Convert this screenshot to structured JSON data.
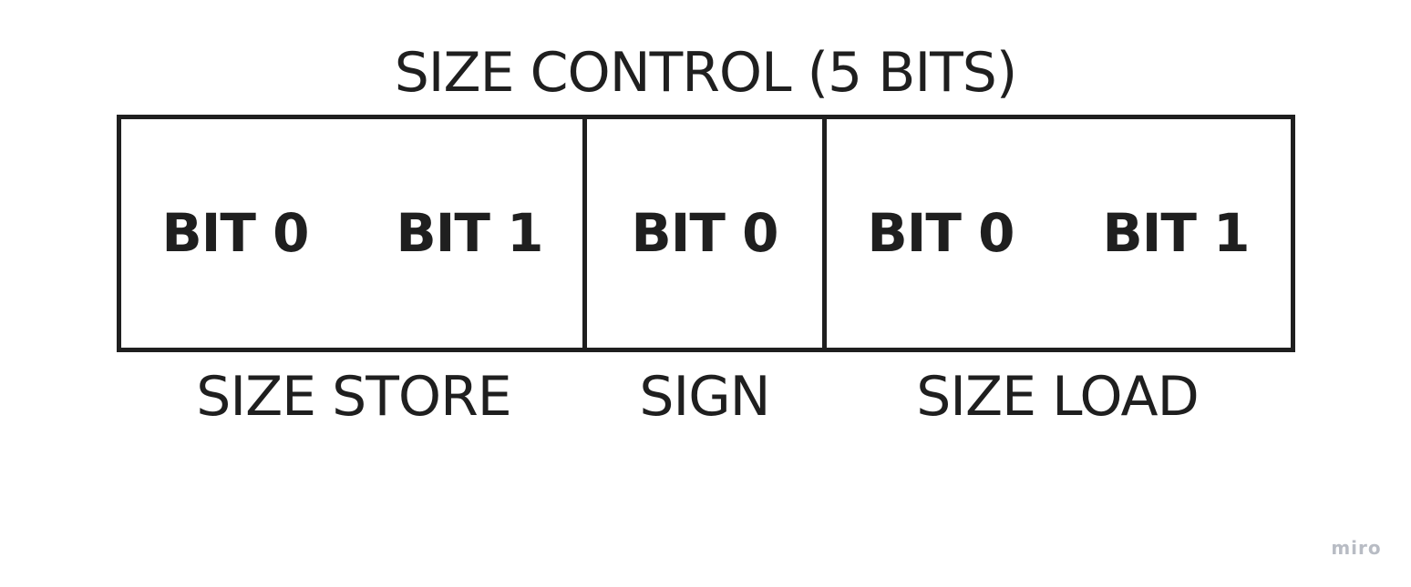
{
  "diagram": {
    "title": "SIZE CONTROL (5 BITS)",
    "groups": [
      {
        "label": "SIZE STORE",
        "bits": [
          "BIT 0",
          "BIT 1"
        ]
      },
      {
        "label": "SIGN",
        "bits": [
          "BIT 0"
        ]
      },
      {
        "label": "SIZE LOAD",
        "bits": [
          "BIT 0",
          "BIT 1"
        ]
      }
    ]
  },
  "watermark": "miro"
}
